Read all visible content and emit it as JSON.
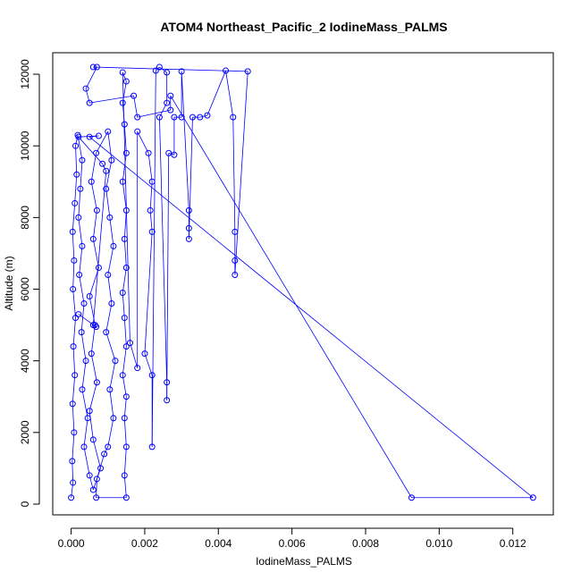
{
  "chart_data": {
    "type": "scatter",
    "title": "ATOM4 Northeast_Pacific_2 IodineMass_PALMS",
    "xlabel": "IodineMass_PALMS",
    "ylabel": "Altitude (m)",
    "xlim": [
      -0.0005,
      0.0131
    ],
    "ylim": [
      -300,
      12600
    ],
    "x_ticks": [
      0,
      0.002,
      0.004,
      0.006,
      0.008,
      0.01,
      0.012
    ],
    "x_tick_labels": [
      "0.000",
      "0.002",
      "0.004",
      "0.006",
      "0.008",
      "0.010",
      "0.012"
    ],
    "y_ticks": [
      0,
      2000,
      4000,
      6000,
      8000,
      10000,
      12000
    ],
    "y_tick_labels": [
      "0",
      "2000",
      "4000",
      "6000",
      "8000",
      "10000",
      "12000"
    ],
    "marker": "open-circle",
    "color": "#0000ff",
    "grid": false,
    "legend": "none",
    "series": [
      {
        "points": [
          [
            0.0,
            180
          ],
          [
            5e-05,
            600
          ],
          [
            3e-05,
            1200
          ],
          [
            8e-05,
            2000
          ],
          [
            4e-05,
            2800
          ],
          [
            0.0001,
            3600
          ],
          [
            6e-05,
            4400
          ],
          [
            0.00012,
            5200
          ],
          [
            5e-05,
            6000
          ],
          [
            8e-05,
            6800
          ],
          [
            4e-05,
            7600
          ],
          [
            0.0001,
            8400
          ],
          [
            0.00015,
            9200
          ],
          [
            0.00012,
            10000
          ],
          [
            0.00018,
            10300
          ],
          [
            0.0003,
            9600
          ],
          [
            0.00025,
            8800
          ],
          [
            0.0002,
            8000
          ],
          [
            0.0003,
            7200
          ],
          [
            0.00022,
            6400
          ],
          [
            0.00035,
            5600
          ],
          [
            0.00028,
            4800
          ],
          [
            0.0004,
            4000
          ],
          [
            0.0003,
            3200
          ],
          [
            0.00045,
            2400
          ],
          [
            0.00035,
            1600
          ],
          [
            0.0005,
            800
          ],
          [
            0.0006,
            400
          ],
          [
            0.0008,
            1000
          ],
          [
            0.0006,
            1800
          ],
          [
            0.0005,
            2600
          ],
          [
            0.0007,
            3400
          ],
          [
            0.00055,
            4200
          ],
          [
            0.00065,
            5000
          ],
          [
            0.0005,
            5800
          ],
          [
            0.00075,
            6600
          ],
          [
            0.0006,
            7400
          ],
          [
            0.0007,
            8200
          ],
          [
            0.00055,
            9000
          ],
          [
            0.00068,
            9800
          ],
          [
            0.001,
            10400
          ],
          [
            0.0011,
            9600
          ],
          [
            0.00095,
            8800
          ],
          [
            0.00105,
            8000
          ],
          [
            0.00115,
            7200
          ],
          [
            0.001,
            6400
          ],
          [
            0.0011,
            5600
          ],
          [
            0.00095,
            4800
          ],
          [
            0.0012,
            4000
          ],
          [
            0.00105,
            3200
          ],
          [
            0.00115,
            2400
          ],
          [
            0.001,
            1600
          ],
          [
            0.0009,
            1400
          ],
          [
            0.0007,
            700
          ],
          [
            0.00068,
            180
          ],
          [
            0.0015,
            180
          ],
          [
            0.00145,
            800
          ],
          [
            0.0015,
            1600
          ],
          [
            0.00145,
            2400
          ],
          [
            0.0015,
            3000
          ],
          [
            0.0014,
            3600
          ],
          [
            0.0015,
            4400
          ],
          [
            0.00145,
            5200
          ],
          [
            0.0014,
            5900
          ],
          [
            0.0015,
            6600
          ],
          [
            0.00145,
            7400
          ],
          [
            0.0015,
            8200
          ],
          [
            0.0014,
            9000
          ],
          [
            0.0015,
            9800
          ],
          [
            0.00145,
            10600
          ],
          [
            0.0014,
            11200
          ],
          [
            0.0015,
            11800
          ],
          [
            0.0014,
            12050
          ],
          [
            0.0016,
            4500
          ],
          [
            0.0018,
            3800
          ],
          [
            0.0018,
            10400
          ],
          [
            0.0021,
            9800
          ],
          [
            0.0022,
            9000
          ],
          [
            0.00215,
            8200
          ],
          [
            0.0022,
            7600
          ],
          [
            0.002,
            4200
          ],
          [
            0.0022,
            3600
          ],
          [
            0.0022,
            1600
          ],
          [
            0.0023,
            12100
          ],
          [
            0.0024,
            12200
          ],
          [
            0.0026,
            12050
          ],
          [
            0.0026,
            11200
          ],
          [
            0.0024,
            10800
          ],
          [
            0.0026,
            3400
          ],
          [
            0.0026,
            2900
          ],
          [
            0.00265,
            9800
          ],
          [
            0.0028,
            9750
          ],
          [
            0.0028,
            10800
          ],
          [
            0.003,
            10800
          ],
          [
            0.003,
            12080
          ],
          [
            0.0032,
            8200
          ],
          [
            0.0032,
            7700
          ],
          [
            0.0032,
            7400
          ],
          [
            0.0033,
            10800
          ],
          [
            0.0035,
            10800
          ],
          [
            0.0037,
            10850
          ],
          [
            0.0042,
            12100
          ],
          [
            0.0044,
            10800
          ],
          [
            0.00445,
            7600
          ],
          [
            0.00445,
            6800
          ],
          [
            0.00445,
            6400
          ],
          [
            0.0048,
            12080
          ],
          [
            0.0006,
            12200
          ],
          [
            0.0007,
            12200
          ],
          [
            0.0004,
            11600
          ],
          [
            0.0005,
            11200
          ],
          [
            0.0017,
            11400
          ],
          [
            0.0018,
            10800
          ],
          [
            0.0027,
            11000
          ],
          [
            0.0027,
            11400
          ],
          [
            0.00925,
            180
          ],
          [
            0.01255,
            180
          ],
          [
            0.0005,
            10250
          ],
          [
            0.00075,
            10280
          ],
          [
            0.0002,
            10250
          ],
          [
            0.00085,
            9500
          ],
          [
            0.00095,
            9300
          ],
          [
            0.0006,
            5000
          ],
          [
            0.00068,
            4950
          ],
          [
            0.0002,
            5300
          ]
        ]
      }
    ]
  }
}
